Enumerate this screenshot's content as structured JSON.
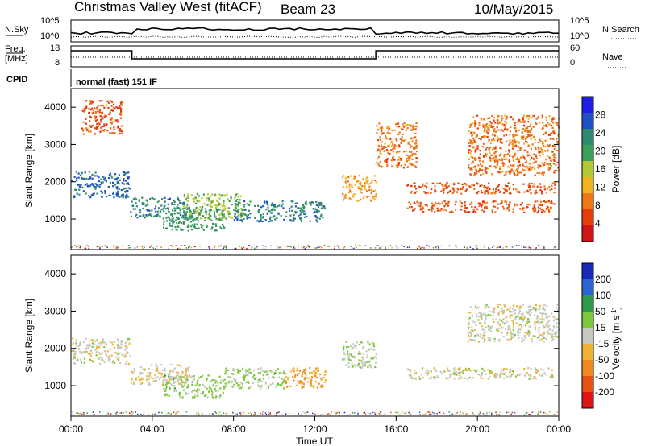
{
  "header": {
    "title": "Christmas Valley West (fitACF)",
    "beam": "Beam 23",
    "date": "10/May/2015"
  },
  "top_panels": {
    "nsky_label": "N.Sky",
    "nsky_ticks": [
      "10^5",
      "10^0"
    ],
    "nsearch_label": "N.Search",
    "nsearch_ticks": [
      "10^5",
      "10^0"
    ],
    "freq_label_1": "Freq.",
    "freq_label_2": "[MHz]",
    "freq_ticks": [
      "18",
      "8"
    ],
    "nave_label": "Nave",
    "nave_ticks": [
      "60",
      "0"
    ],
    "cpid_label": "CPID",
    "cpid_value": "normal (fast) 151 IF"
  },
  "x_axis": {
    "label": "Time UT",
    "tick_labels": [
      "00:00",
      "04:00",
      "08:00",
      "12:00",
      "16:00",
      "20:00",
      "00:00"
    ],
    "range_hours": [
      0,
      24
    ]
  },
  "colors": {
    "power_scale": [
      "#1e1ee6",
      "#2050c8",
      "#2f8a6f",
      "#3aa05a",
      "#b4c832",
      "#f0b41e",
      "#f07814",
      "#e63c0a",
      "#d21414"
    ],
    "velocity_scale": [
      "#1a2ab8",
      "#2c64d2",
      "#2e9a4a",
      "#7cc83c",
      "#c8c8c0",
      "#f0b432",
      "#f08c1e",
      "#e85014",
      "#e01414"
    ]
  },
  "chart_data": [
    {
      "type": "heatmap",
      "name": "Power",
      "ylabel": "Slant Range [km]",
      "xlabel": "Time UT",
      "ylim": [
        180,
        4500
      ],
      "y_ticks": [
        1000,
        2000,
        3000,
        4000
      ],
      "colorbar_label": "Power [dB]",
      "colorbar_ticks": [
        "28",
        "24",
        "20",
        "16",
        "12",
        "8",
        "4"
      ],
      "colorbar_range": [
        0,
        30
      ],
      "echo_regions": [
        {
          "t": [
            0.0,
            2.9
          ],
          "r": [
            1600,
            2300
          ],
          "value": 24
        },
        {
          "t": [
            2.9,
            5.8
          ],
          "r": [
            1050,
            1600
          ],
          "value": 22
        },
        {
          "t": [
            4.5,
            7.5
          ],
          "r": [
            700,
            1300
          ],
          "value": 20
        },
        {
          "t": [
            5.5,
            8.5
          ],
          "r": [
            1000,
            1700
          ],
          "value": 16
        },
        {
          "t": [
            8.0,
            12.5
          ],
          "r": [
            950,
            1500
          ],
          "value": 22
        },
        {
          "t": [
            13.3,
            15.0
          ],
          "r": [
            1500,
            2200
          ],
          "value": 10
        },
        {
          "t": [
            15.0,
            17.0
          ],
          "r": [
            2400,
            3600
          ],
          "value": 8
        },
        {
          "t": [
            16.5,
            23.8
          ],
          "r": [
            1200,
            1500
          ],
          "value": 6
        },
        {
          "t": [
            16.5,
            23.8
          ],
          "r": [
            1700,
            2000
          ],
          "value": 6
        },
        {
          "t": [
            19.5,
            24.0
          ],
          "r": [
            2200,
            3800
          ],
          "value": 8
        },
        {
          "t": [
            0.5,
            2.5
          ],
          "r": [
            3300,
            4200
          ],
          "value": 6
        }
      ]
    },
    {
      "type": "heatmap",
      "name": "Velocity",
      "ylabel": "Slant Range [km]",
      "xlabel": "Time UT",
      "ylim": [
        180,
        4500
      ],
      "y_ticks": [
        1000,
        2000,
        3000,
        4000
      ],
      "colorbar_label": "Velocity [m s^-1]",
      "colorbar_ticks": [
        "200",
        "100",
        "50",
        "15",
        "-15",
        "-50",
        "-100",
        "-200"
      ],
      "colorbar_range": [
        -250,
        250
      ],
      "echo_regions": [
        {
          "t": [
            0.0,
            2.9
          ],
          "r": [
            1600,
            2300
          ],
          "value": 0
        },
        {
          "t": [
            2.9,
            5.8
          ],
          "r": [
            1050,
            1600
          ],
          "value": -20
        },
        {
          "t": [
            4.5,
            7.5
          ],
          "r": [
            700,
            1300
          ],
          "value": 40
        },
        {
          "t": [
            7.5,
            10.5
          ],
          "r": [
            950,
            1500
          ],
          "value": 40
        },
        {
          "t": [
            10.5,
            12.5
          ],
          "r": [
            950,
            1500
          ],
          "value": -80
        },
        {
          "t": [
            13.3,
            15.0
          ],
          "r": [
            1500,
            2200
          ],
          "value": 20
        },
        {
          "t": [
            16.5,
            23.8
          ],
          "r": [
            1200,
            1500
          ],
          "value": 0
        },
        {
          "t": [
            19.5,
            24.0
          ],
          "r": [
            2200,
            3200
          ],
          "value": 0
        }
      ]
    }
  ]
}
